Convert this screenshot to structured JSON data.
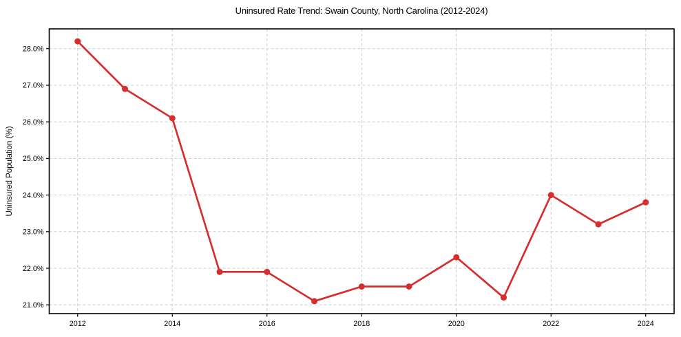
{
  "chart_data": {
    "type": "line",
    "title": "Uninsured Rate Trend: Swain County, North Carolina (2012-2024)",
    "xlabel": "",
    "ylabel": "Uninsured Population (%)",
    "x": [
      2012,
      2013,
      2014,
      2015,
      2016,
      2017,
      2018,
      2019,
      2020,
      2021,
      2022,
      2023,
      2024
    ],
    "values": [
      28.2,
      26.9,
      26.1,
      21.9,
      21.9,
      21.1,
      21.5,
      21.5,
      22.3,
      21.2,
      24.0,
      23.2,
      23.8
    ],
    "xticks": [
      2012,
      2014,
      2016,
      2018,
      2020,
      2022,
      2024
    ],
    "xtick_labels": [
      "2012",
      "2014",
      "2016",
      "2018",
      "2020",
      "2022",
      "2024"
    ],
    "yticks": [
      21,
      22,
      23,
      24,
      25,
      26,
      27,
      28
    ],
    "ytick_labels": [
      "21.0%",
      "22.0%",
      "23.0%",
      "24.0%",
      "25.0%",
      "26.0%",
      "27.0%",
      "28.0%"
    ],
    "xlim": [
      2011.4,
      2024.6
    ],
    "ylim": [
      20.76,
      28.54
    ],
    "grid": true,
    "grid_style": "dashed",
    "legend": "none",
    "colors": {
      "line": "#d62e2e",
      "marker": "#d62e2e",
      "grid": "#cccccc",
      "axis": "#000000",
      "text": "#000000",
      "background": "#ffffff"
    }
  }
}
